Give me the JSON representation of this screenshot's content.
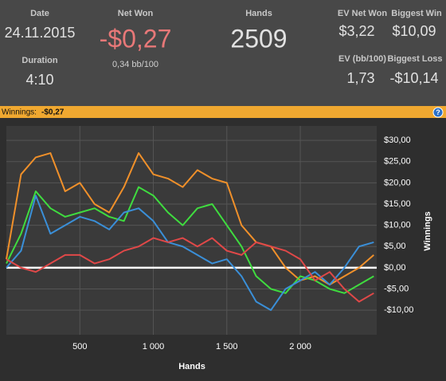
{
  "stats": {
    "date": {
      "label": "Date",
      "value": "24.11.2015"
    },
    "duration": {
      "label": "Duration",
      "value": "4:10"
    },
    "net_won": {
      "label": "Net Won",
      "value": "-$0,27",
      "sub": "0,34 bb/100"
    },
    "hands": {
      "label": "Hands",
      "value": "2509"
    },
    "ev_net_won": {
      "label": "EV Net Won",
      "value": "$3,22"
    },
    "biggest_win": {
      "label": "Biggest Win",
      "value": "$10,09"
    },
    "ev_bb": {
      "label": "EV (bb/100)",
      "value": "1,73"
    },
    "biggest_loss": {
      "label": "Biggest Loss",
      "value": "-$10,14"
    }
  },
  "panel": {
    "label": "Winnings:",
    "value": "-$0,27"
  },
  "chart_data": {
    "type": "line",
    "xlabel": "Hands",
    "ylabel": "Winnings",
    "x": [
      0,
      100,
      200,
      300,
      400,
      500,
      600,
      700,
      800,
      900,
      1000,
      1100,
      1200,
      1300,
      1400,
      1500,
      1600,
      1700,
      1800,
      1900,
      2000,
      2100,
      2200,
      2300,
      2400,
      2500
    ],
    "series": [
      {
        "color": "#f0902a",
        "values": [
          2,
          22,
          26,
          27,
          18,
          20,
          15,
          13,
          19,
          27,
          22,
          21,
          19,
          23,
          21,
          20,
          10,
          6,
          5,
          0,
          -3,
          -2,
          -4,
          -2,
          0,
          3
        ]
      },
      {
        "color": "#3fdc3f",
        "values": [
          1,
          8,
          18,
          14,
          12,
          13,
          14,
          12,
          11,
          19,
          17,
          13,
          10,
          14,
          15,
          10,
          5,
          -2,
          -5,
          -6,
          -2,
          -3,
          -5,
          -6,
          -4,
          -2
        ]
      },
      {
        "color": "#3a8fd8",
        "values": [
          0,
          4,
          17,
          8,
          10,
          12,
          11,
          9,
          13,
          14,
          11,
          6,
          5,
          3,
          1,
          2,
          -2,
          -8,
          -10,
          -5,
          -3,
          -1,
          -4,
          0,
          5,
          6
        ]
      },
      {
        "color": "#e04848",
        "values": [
          2,
          0,
          -1,
          1,
          3,
          3,
          1,
          2,
          4,
          5,
          7,
          6,
          7,
          5,
          7,
          4,
          3,
          6,
          5,
          4,
          2,
          -3,
          -1,
          -5,
          -8,
          -6
        ]
      }
    ],
    "xlim": [
      0,
      2520
    ],
    "ylim": [
      -15.8,
      33.4
    ],
    "xticks": [
      500,
      {
        "value": 1000,
        "label": "1 000"
      },
      {
        "value": 1500,
        "label": "1 500"
      },
      {
        "value": 2000,
        "label": "2 000"
      }
    ],
    "yticks": [
      {
        "value": 30,
        "label": "$30,00"
      },
      {
        "value": 25,
        "label": "$25,00"
      },
      {
        "value": 20,
        "label": "$20,00"
      },
      {
        "value": 15,
        "label": "$15,00"
      },
      {
        "value": 10,
        "label": "$10,00"
      },
      {
        "value": 5,
        "label": "$5,00"
      },
      {
        "value": 0,
        "label": "$0,00"
      },
      {
        "value": -5,
        "label": "-$5,00"
      },
      {
        "value": -10,
        "label": "-$10,00"
      }
    ],
    "grid": true
  }
}
